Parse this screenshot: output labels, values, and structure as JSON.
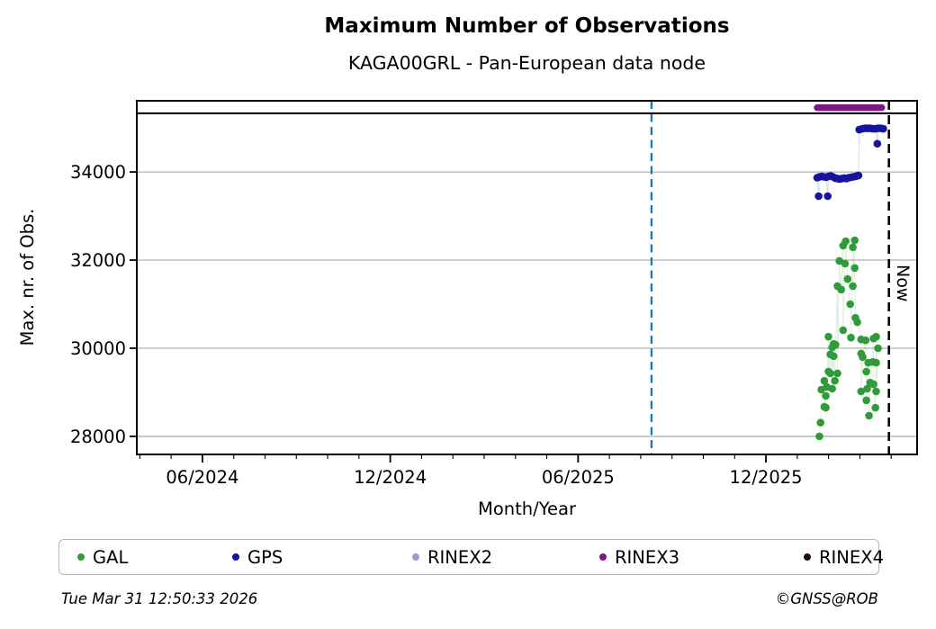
{
  "page": {
    "title": "Maximum Number of Observations",
    "subtitle": "KAGA00GRL - Pan-European data node",
    "footer_left": "Tue Mar 31 12:50:33 2026",
    "footer_right": "©GNSS@ROB"
  },
  "chart_data": {
    "type": "scatter",
    "title": "Maximum Number of Observations",
    "subtitle": "KAGA00GRL - Pan-European data node",
    "xlabel": "Month/Year",
    "ylabel": "Max. nr. of Obs.",
    "xlim": [
      2024.242,
      2026.319
    ],
    "ylim": [
      27590,
      35615
    ],
    "grid": true,
    "grid_color": "#b0b0b0",
    "x_major_ticks": [
      {
        "x": 2024.4167,
        "label": "06/2024"
      },
      {
        "x": 2024.9167,
        "label": "12/2024"
      },
      {
        "x": 2025.4167,
        "label": "06/2025"
      },
      {
        "x": 2025.9167,
        "label": "12/2025"
      }
    ],
    "x_minor_tick_months": "every month from 04/2024 to 04/2026",
    "y_ticks": [
      {
        "value": 28000,
        "label": "28000"
      },
      {
        "value": 30000,
        "label": "30000"
      },
      {
        "value": 32000,
        "label": "32000"
      },
      {
        "value": 34000,
        "label": "34000"
      }
    ],
    "reference_lines": {
      "hline": {
        "value": 35330,
        "color": "#000000",
        "style": "solid"
      },
      "vlines": [
        {
          "x": 2025.612,
          "color": "#1f77b4",
          "style": "dashed",
          "label": ""
        },
        {
          "x": 2026.244,
          "color": "#000000",
          "style": "dashed",
          "label": "Now"
        }
      ]
    },
    "legend": {
      "position": "bottom",
      "entries": [
        "GAL",
        "GPS",
        "RINEX2",
        "RINEX3",
        "RINEX4"
      ]
    },
    "series": [
      {
        "name": "GAL",
        "color": "#2f9c39",
        "marker": "circle",
        "points": [
          [
            2026.059,
            28000
          ],
          [
            2026.062,
            28310
          ],
          [
            2026.064,
            29060
          ],
          [
            2026.072,
            29260
          ],
          [
            2026.072,
            28670
          ],
          [
            2026.076,
            28920
          ],
          [
            2026.076,
            28650
          ],
          [
            2026.079,
            29120
          ],
          [
            2026.083,
            30260
          ],
          [
            2026.083,
            29470
          ],
          [
            2026.088,
            29860
          ],
          [
            2026.088,
            29430
          ],
          [
            2026.093,
            30020
          ],
          [
            2026.093,
            29080
          ],
          [
            2026.097,
            30100
          ],
          [
            2026.097,
            29820
          ],
          [
            2026.1,
            29260
          ],
          [
            2026.102,
            30080
          ],
          [
            2026.107,
            31410
          ],
          [
            2026.107,
            29430
          ],
          [
            2026.112,
            31980
          ],
          [
            2026.117,
            31330
          ],
          [
            2026.122,
            32330
          ],
          [
            2026.122,
            30410
          ],
          [
            2026.127,
            31920
          ],
          [
            2026.129,
            32430
          ],
          [
            2026.134,
            31570
          ],
          [
            2026.141,
            31000
          ],
          [
            2026.143,
            30240
          ],
          [
            2026.148,
            32290
          ],
          [
            2026.148,
            31410
          ],
          [
            2026.153,
            32450
          ],
          [
            2026.153,
            31820
          ],
          [
            2026.155,
            30690
          ],
          [
            2026.16,
            30590
          ],
          [
            2026.17,
            30200
          ],
          [
            2026.17,
            29880
          ],
          [
            2026.17,
            29020
          ],
          [
            2026.174,
            29800
          ],
          [
            2026.182,
            30180
          ],
          [
            2026.184,
            29470
          ],
          [
            2026.184,
            28820
          ],
          [
            2026.186,
            29080
          ],
          [
            2026.189,
            29670
          ],
          [
            2026.191,
            28470
          ],
          [
            2026.194,
            29220
          ],
          [
            2026.201,
            29690
          ],
          [
            2026.203,
            30220
          ],
          [
            2026.203,
            29180
          ],
          [
            2026.208,
            28650
          ],
          [
            2026.21,
            30260
          ],
          [
            2026.21,
            29670
          ],
          [
            2026.21,
            29020
          ],
          [
            2026.215,
            30000
          ]
        ]
      },
      {
        "name": "GPS",
        "color": "#14149e",
        "marker": "circle",
        "points": [
          [
            2026.053,
            33870
          ],
          [
            2026.057,
            33450
          ],
          [
            2026.059,
            33890
          ],
          [
            2026.065,
            33900
          ],
          [
            2026.071,
            33890
          ],
          [
            2026.077,
            33880
          ],
          [
            2026.081,
            33450
          ],
          [
            2026.083,
            33900
          ],
          [
            2026.089,
            33910
          ],
          [
            2026.095,
            33890
          ],
          [
            2026.101,
            33860
          ],
          [
            2026.107,
            33850
          ],
          [
            2026.113,
            33840
          ],
          [
            2026.119,
            33850
          ],
          [
            2026.125,
            33860
          ],
          [
            2026.131,
            33850
          ],
          [
            2026.137,
            33870
          ],
          [
            2026.143,
            33880
          ],
          [
            2026.149,
            33890
          ],
          [
            2026.155,
            33900
          ],
          [
            2026.159,
            33910
          ],
          [
            2026.163,
            33920
          ],
          [
            2026.165,
            34960
          ],
          [
            2026.173,
            34980
          ],
          [
            2026.18,
            34990
          ],
          [
            2026.187,
            34990
          ],
          [
            2026.194,
            34990
          ],
          [
            2026.201,
            34980
          ],
          [
            2026.208,
            34980
          ],
          [
            2026.213,
            34640
          ],
          [
            2026.215,
            34990
          ],
          [
            2026.222,
            34990
          ],
          [
            2026.229,
            34980
          ]
        ]
      },
      {
        "name": "RINEX2",
        "color": "#9b9bd9",
        "marker": "circle",
        "points": []
      },
      {
        "name": "RINEX3",
        "color": "#7d1880",
        "marker": "circle",
        "band": {
          "x_start": 2026.053,
          "x_end": 2026.225,
          "value": 35460
        },
        "points": []
      },
      {
        "name": "RINEX4",
        "color": "#200a20",
        "marker": "circle",
        "points": []
      }
    ]
  },
  "legend_layout": {
    "item_lefts": [
      20,
      192,
      392,
      600,
      827
    ]
  }
}
